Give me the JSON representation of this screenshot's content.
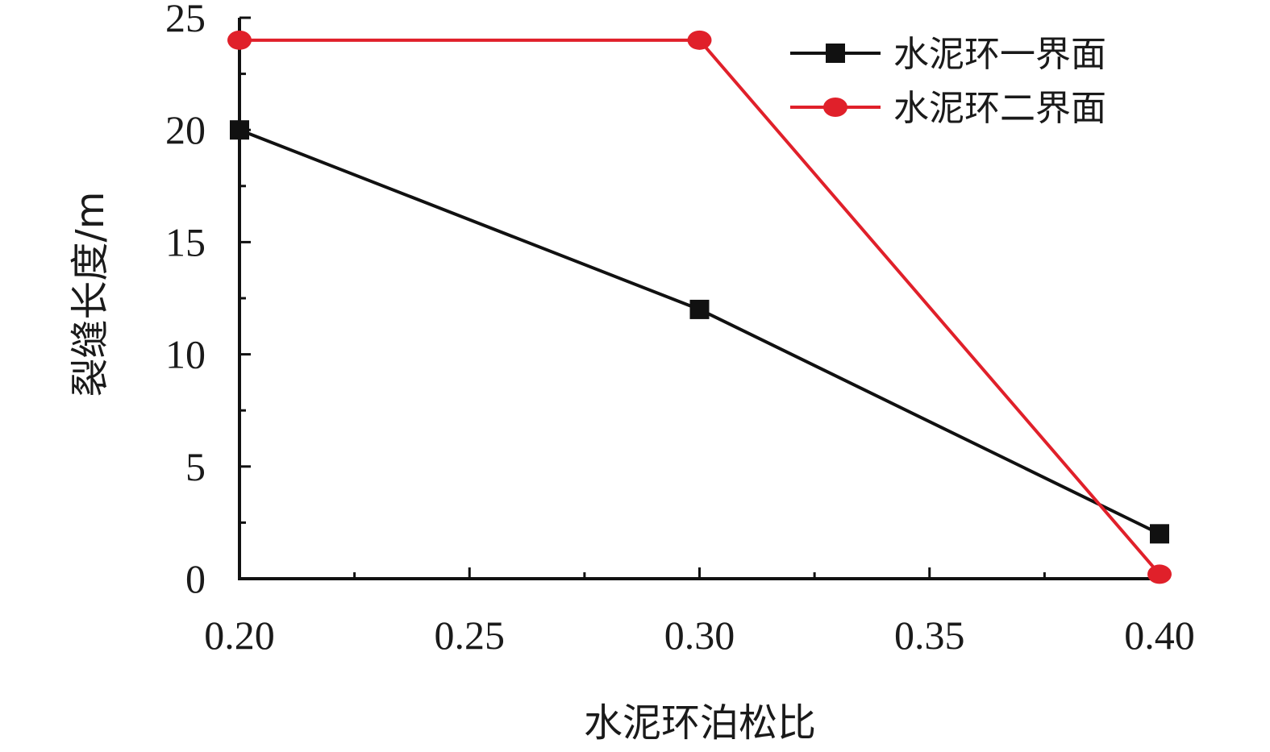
{
  "chart_data": {
    "type": "line",
    "title": "",
    "xlabel": "水泥环泊松比",
    "ylabel": "裂缝长度/m",
    "xlim": [
      0.2,
      0.4
    ],
    "ylim": [
      0,
      25
    ],
    "x_ticks": [
      "0.20",
      "0.25",
      "0.30",
      "0.35",
      "0.40"
    ],
    "y_ticks": [
      "0",
      "5",
      "10",
      "15",
      "20",
      "25"
    ],
    "grid": false,
    "legend_position": "top-right",
    "series": [
      {
        "name": "水泥环一界面",
        "color": "#111111",
        "marker": "square",
        "x": [
          0.2,
          0.3,
          0.4
        ],
        "y": [
          20,
          12,
          2
        ]
      },
      {
        "name": "水泥环二界面",
        "color": "#e0202a",
        "marker": "circle",
        "x": [
          0.2,
          0.3,
          0.4
        ],
        "y": [
          24,
          24,
          0.2
        ]
      }
    ]
  }
}
